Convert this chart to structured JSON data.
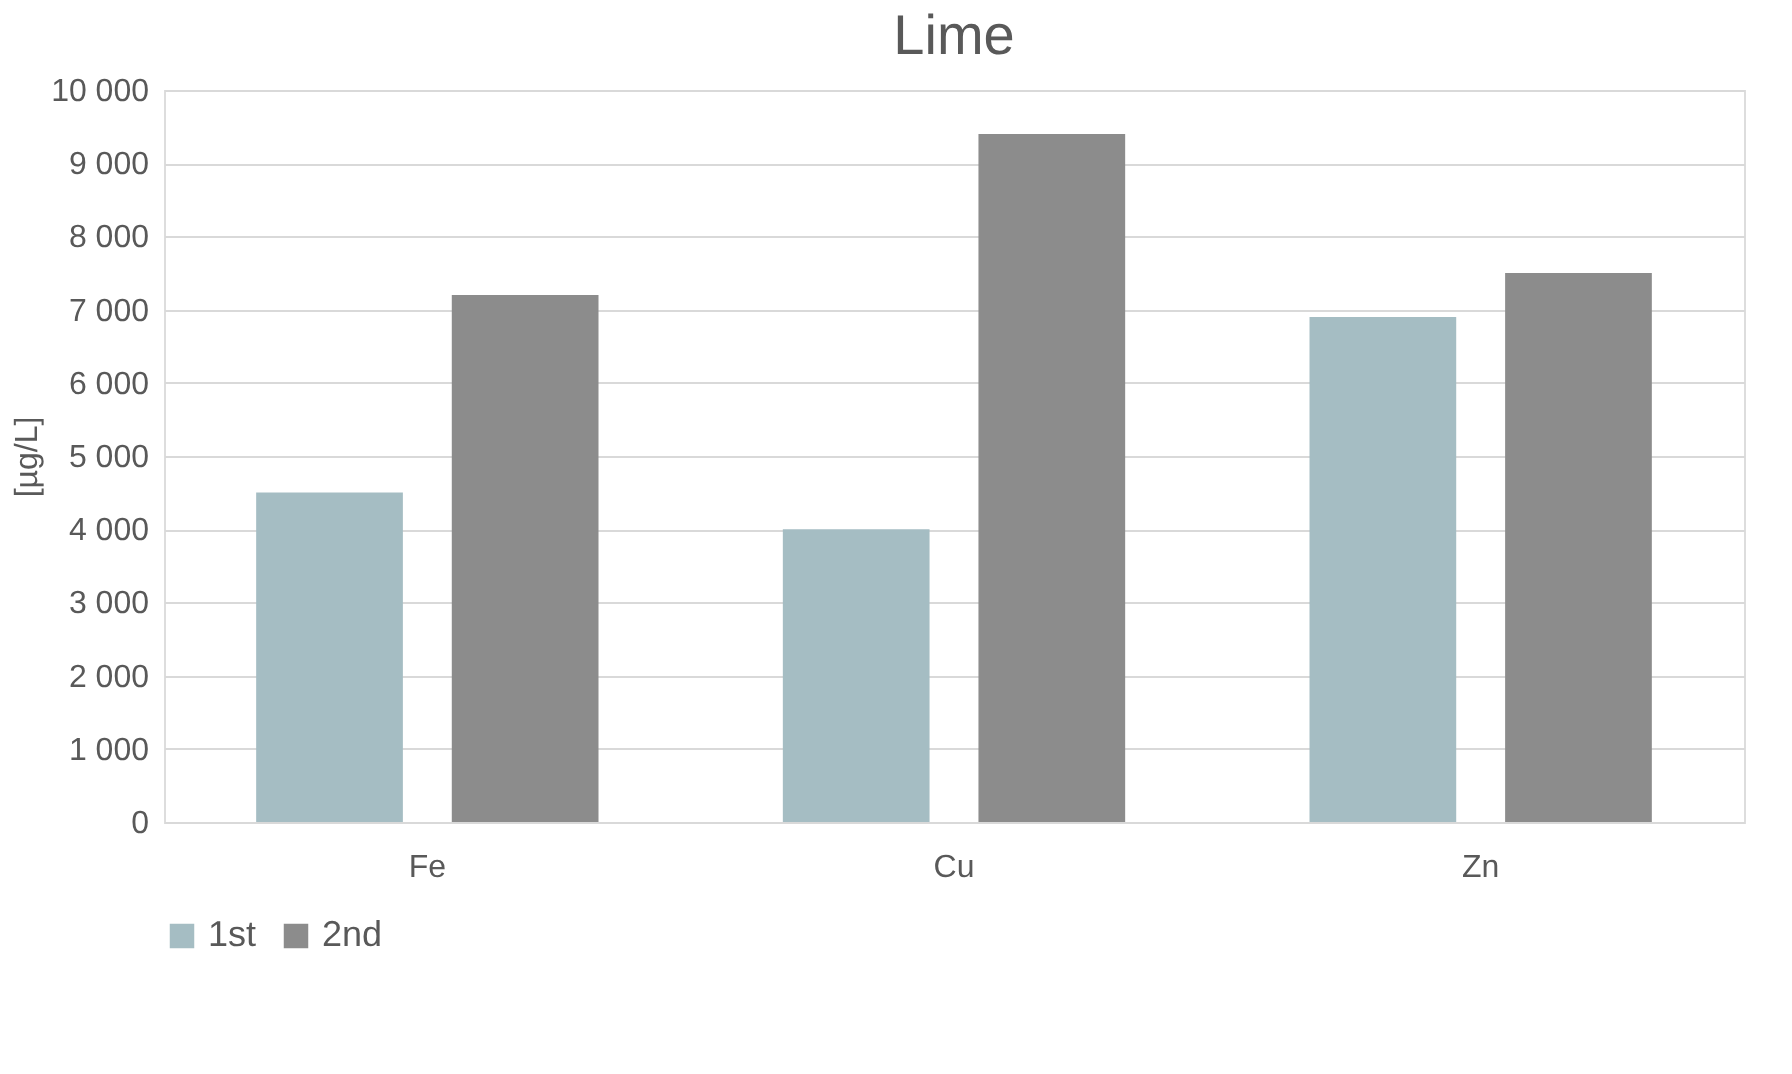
{
  "chart_data": {
    "type": "bar",
    "title": "Lime",
    "ylabel": "[µg/L]",
    "categories": [
      "Fe",
      "Cu",
      "Zn"
    ],
    "series": [
      {
        "name": "1st",
        "color": "#a5bdc3",
        "values": [
          4500,
          4000,
          6900
        ]
      },
      {
        "name": "2nd",
        "color": "#8c8c8c",
        "values": [
          7200,
          9400,
          7500
        ]
      }
    ],
    "ylim": [
      0,
      10000
    ],
    "yticks": [
      0,
      {
        "value": 1000,
        "label": "1 000"
      },
      {
        "value": 2000,
        "label": "2 000"
      },
      {
        "value": 3000,
        "label": "3 000"
      },
      {
        "value": 4000,
        "label": "4 000"
      },
      {
        "value": 5000,
        "label": "5 000"
      },
      {
        "value": 6000,
        "label": "6 000"
      },
      {
        "value": 7000,
        "label": "7 000"
      },
      {
        "value": 8000,
        "label": "8 000"
      },
      {
        "value": 9000,
        "label": "9 000"
      },
      {
        "value": 10000,
        "label": "10 000"
      }
    ],
    "grid": "y",
    "legend": "bottom"
  }
}
